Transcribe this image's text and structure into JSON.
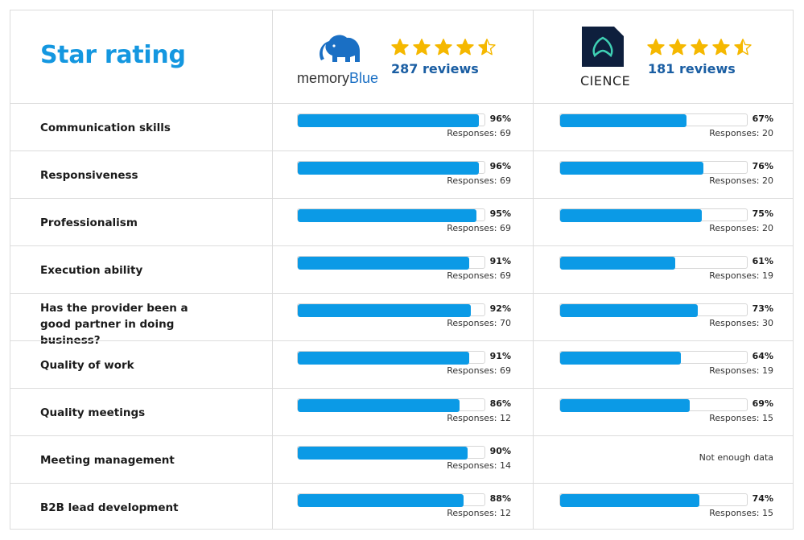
{
  "title": "Star rating",
  "vendors": [
    {
      "name": "memoryBlue",
      "logo_word_a": "memory",
      "logo_word_b": "Blue",
      "reviews": "287 reviews",
      "stars": 4.5
    },
    {
      "name": "CIENCE",
      "logo_word_a": "CIENCE",
      "reviews": "181 reviews",
      "stars": 4.5
    }
  ],
  "colors": {
    "accent": "#1497e0",
    "bar": "#0b9ae6",
    "star": "#f5b800",
    "reviews": "#1a5ea3"
  },
  "chart_data": {
    "type": "bar",
    "orientation": "horizontal",
    "xlim": [
      0,
      100
    ],
    "categories": [
      "Communication skills",
      "Responsiveness",
      "Professionalism",
      "Execution ability",
      "Has the provider been a good partner in doing business?",
      "Quality of work",
      "Quality meetings",
      "Meeting management",
      "B2B lead development"
    ],
    "series": [
      {
        "name": "memoryBlue",
        "values": [
          96,
          96,
          95,
          91,
          92,
          91,
          86,
          90,
          88
        ],
        "labels": [
          "96%",
          "96%",
          "95%",
          "91%",
          "92%",
          "91%",
          "86%",
          "90%",
          "88%"
        ],
        "responses": [
          "Responses: 69",
          "Responses: 69",
          "Responses: 69",
          "Responses: 69",
          "Responses: 70",
          "Responses: 69",
          "Responses: 12",
          "Responses: 14",
          "Responses: 12"
        ]
      },
      {
        "name": "CIENCE",
        "values": [
          67,
          76,
          75,
          61,
          73,
          64,
          69,
          null,
          74
        ],
        "labels": [
          "67%",
          "76%",
          "75%",
          "61%",
          "73%",
          "64%",
          "69%",
          null,
          "74%"
        ],
        "responses": [
          "Responses: 20",
          "Responses: 20",
          "Responses: 20",
          "Responses: 19",
          "Responses: 30",
          "Responses: 19",
          "Responses: 15",
          null,
          "Responses: 15"
        ]
      }
    ],
    "no_data_label": "Not enough data"
  }
}
